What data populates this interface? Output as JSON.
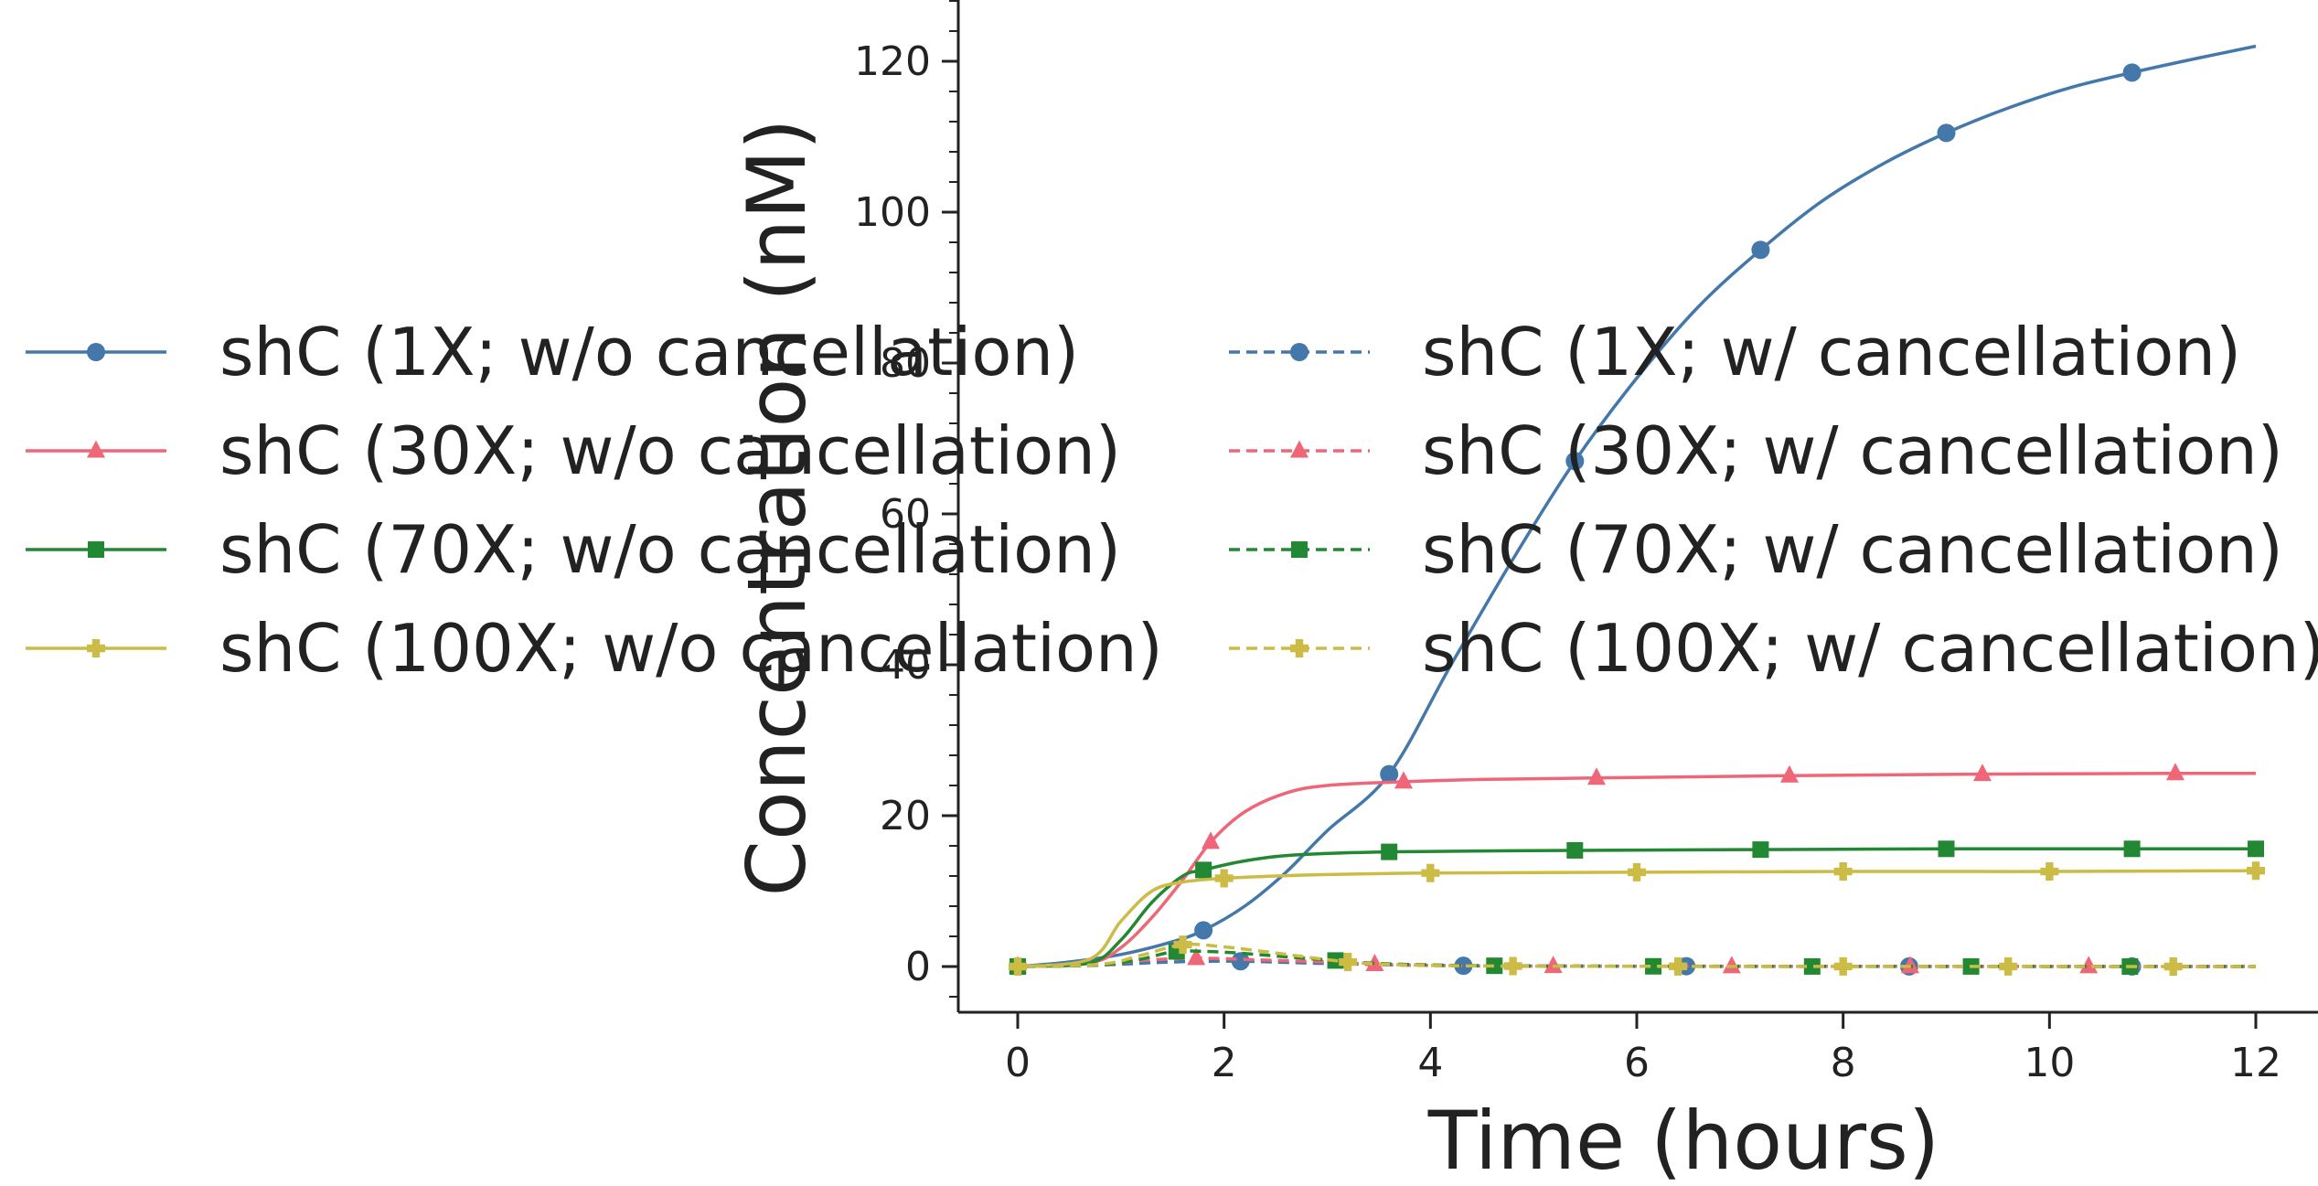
{
  "chart_data": {
    "type": "line",
    "title": "",
    "xlabel": "Time (hours)",
    "ylabel": "Concentration (nM)",
    "xlim": [
      -0.6,
      12.6
    ],
    "ylim": [
      -6,
      128
    ],
    "x_ticks": [
      0,
      2,
      4,
      6,
      8,
      10,
      12
    ],
    "y_ticks": [
      0,
      20,
      40,
      60,
      80,
      100,
      120
    ],
    "grid": false,
    "legend_position": "center-left",
    "series": [
      {
        "name": "shC (1X; w/o cancellation)",
        "color": "#4477AA",
        "linestyle": "solid",
        "marker": "circle",
        "x": [
          0,
          0.5,
          1.0,
          1.5,
          1.8,
          2.2,
          2.6,
          3.0,
          3.6,
          4.2,
          4.8,
          5.4,
          6.0,
          6.6,
          7.2,
          7.8,
          8.4,
          9.0,
          9.6,
          10.2,
          10.8,
          11.4,
          12.0
        ],
        "y": [
          0,
          0.6,
          1.6,
          3.3,
          4.8,
          8.0,
          12.5,
          18.0,
          25.5,
          40.0,
          54.0,
          67.0,
          78.0,
          87.5,
          95.0,
          101.5,
          106.5,
          110.5,
          113.8,
          116.5,
          118.5,
          120.3,
          122.0
        ],
        "marker_x": [
          0,
          1.8,
          3.6,
          5.4,
          7.2,
          9.0,
          10.8
        ]
      },
      {
        "name": "shC (30X; w/o cancellation)",
        "color": "#EE6677",
        "linestyle": "solid",
        "marker": "triangle",
        "x": [
          0,
          0.7,
          1.0,
          1.3,
          1.6,
          1.87,
          2.2,
          2.6,
          3.0,
          3.74,
          4.5,
          5.61,
          7.48,
          9.35,
          11.22,
          12.0
        ],
        "y": [
          0,
          0.5,
          2.5,
          6.5,
          11.5,
          16.5,
          20.5,
          23.0,
          24.0,
          24.5,
          24.8,
          25.0,
          25.3,
          25.5,
          25.6,
          25.6
        ],
        "marker_x": [
          0,
          1.87,
          3.74,
          5.61,
          7.48,
          9.35,
          11.22
        ]
      },
      {
        "name": "shC (70X; w/o cancellation)",
        "color": "#228833",
        "linestyle": "solid",
        "marker": "square",
        "x": [
          0,
          0.7,
          1.0,
          1.3,
          1.6,
          1.8,
          2.2,
          2.7,
          3.6,
          5.4,
          7.2,
          9.0,
          10.8,
          12.0
        ],
        "y": [
          0,
          0.5,
          3.5,
          8.5,
          12.0,
          12.8,
          14.0,
          14.8,
          15.2,
          15.4,
          15.5,
          15.6,
          15.6,
          15.6
        ],
        "marker_x": [
          0,
          1.8,
          3.6,
          5.4,
          7.2,
          9.0,
          10.8,
          12.0
        ]
      },
      {
        "name": "shC (100X; w/o cancellation)",
        "color": "#CCBB44",
        "linestyle": "solid",
        "marker": "plus",
        "x": [
          0,
          0.7,
          1.0,
          1.3,
          1.6,
          2.0,
          2.5,
          3.0,
          4.0,
          6.0,
          8.0,
          10.0,
          12.0
        ],
        "y": [
          0,
          1.0,
          6.0,
          10.0,
          11.2,
          11.7,
          12.0,
          12.2,
          12.4,
          12.5,
          12.6,
          12.6,
          12.7
        ],
        "marker_x": [
          0,
          2.0,
          4.0,
          6.0,
          8.0,
          10.0,
          12.0
        ]
      },
      {
        "name": "shC (1X; w/ cancellation)",
        "color": "#4477AA",
        "linestyle": "dashed",
        "marker": "circle",
        "x": [
          0,
          0.8,
          1.5,
          2.16,
          3.0,
          4.32,
          6.48,
          8.64,
          10.8,
          12.0
        ],
        "y": [
          0,
          0.2,
          0.6,
          0.7,
          0.4,
          0.1,
          0.05,
          0.02,
          0.01,
          0.01
        ],
        "marker_x": [
          0,
          2.16,
          4.32,
          6.48,
          8.64,
          10.8
        ]
      },
      {
        "name": "shC (30X; w/ cancellation)",
        "color": "#EE6677",
        "linestyle": "dashed",
        "marker": "triangle",
        "x": [
          0,
          0.8,
          1.2,
          1.73,
          2.3,
          3.0,
          3.46,
          4.0,
          5.19,
          6.92,
          8.65,
          10.38,
          12.0
        ],
        "y": [
          0,
          0.2,
          0.8,
          1.1,
          0.9,
          0.6,
          0.3,
          0.15,
          0.05,
          0.02,
          0.01,
          0.01,
          0.0
        ],
        "marker_x": [
          0,
          1.73,
          3.46,
          5.19,
          6.92,
          8.65,
          10.38
        ]
      },
      {
        "name": "shC (70X; w/ cancellation)",
        "color": "#228833",
        "linestyle": "dashed",
        "marker": "square",
        "x": [
          0,
          0.8,
          1.2,
          1.54,
          2.0,
          2.5,
          3.08,
          3.6,
          4.62,
          6.16,
          7.7,
          9.24,
          10.78,
          12.0
        ],
        "y": [
          0,
          0.2,
          1.0,
          2.0,
          1.9,
          1.4,
          0.8,
          0.35,
          0.1,
          0.03,
          0.01,
          0.01,
          0.0,
          0.0
        ],
        "marker_x": [
          0,
          1.54,
          3.08,
          4.62,
          6.16,
          7.7,
          9.24,
          10.78
        ]
      },
      {
        "name": "shC (100X; w/ cancellation)",
        "color": "#CCBB44",
        "linestyle": "dashed",
        "marker": "plus",
        "x": [
          0,
          0.8,
          1.2,
          1.6,
          2.0,
          2.5,
          3.2,
          3.8,
          4.8,
          6.4,
          8.0,
          9.6,
          11.2,
          12.0
        ],
        "y": [
          0,
          0.3,
          1.5,
          2.9,
          2.6,
          1.8,
          0.6,
          0.2,
          0.06,
          0.02,
          0.01,
          0.01,
          0.0,
          0.0
        ],
        "marker_x": [
          0,
          1.6,
          3.2,
          4.8,
          6.4,
          8.0,
          9.6,
          11.2
        ]
      }
    ]
  }
}
